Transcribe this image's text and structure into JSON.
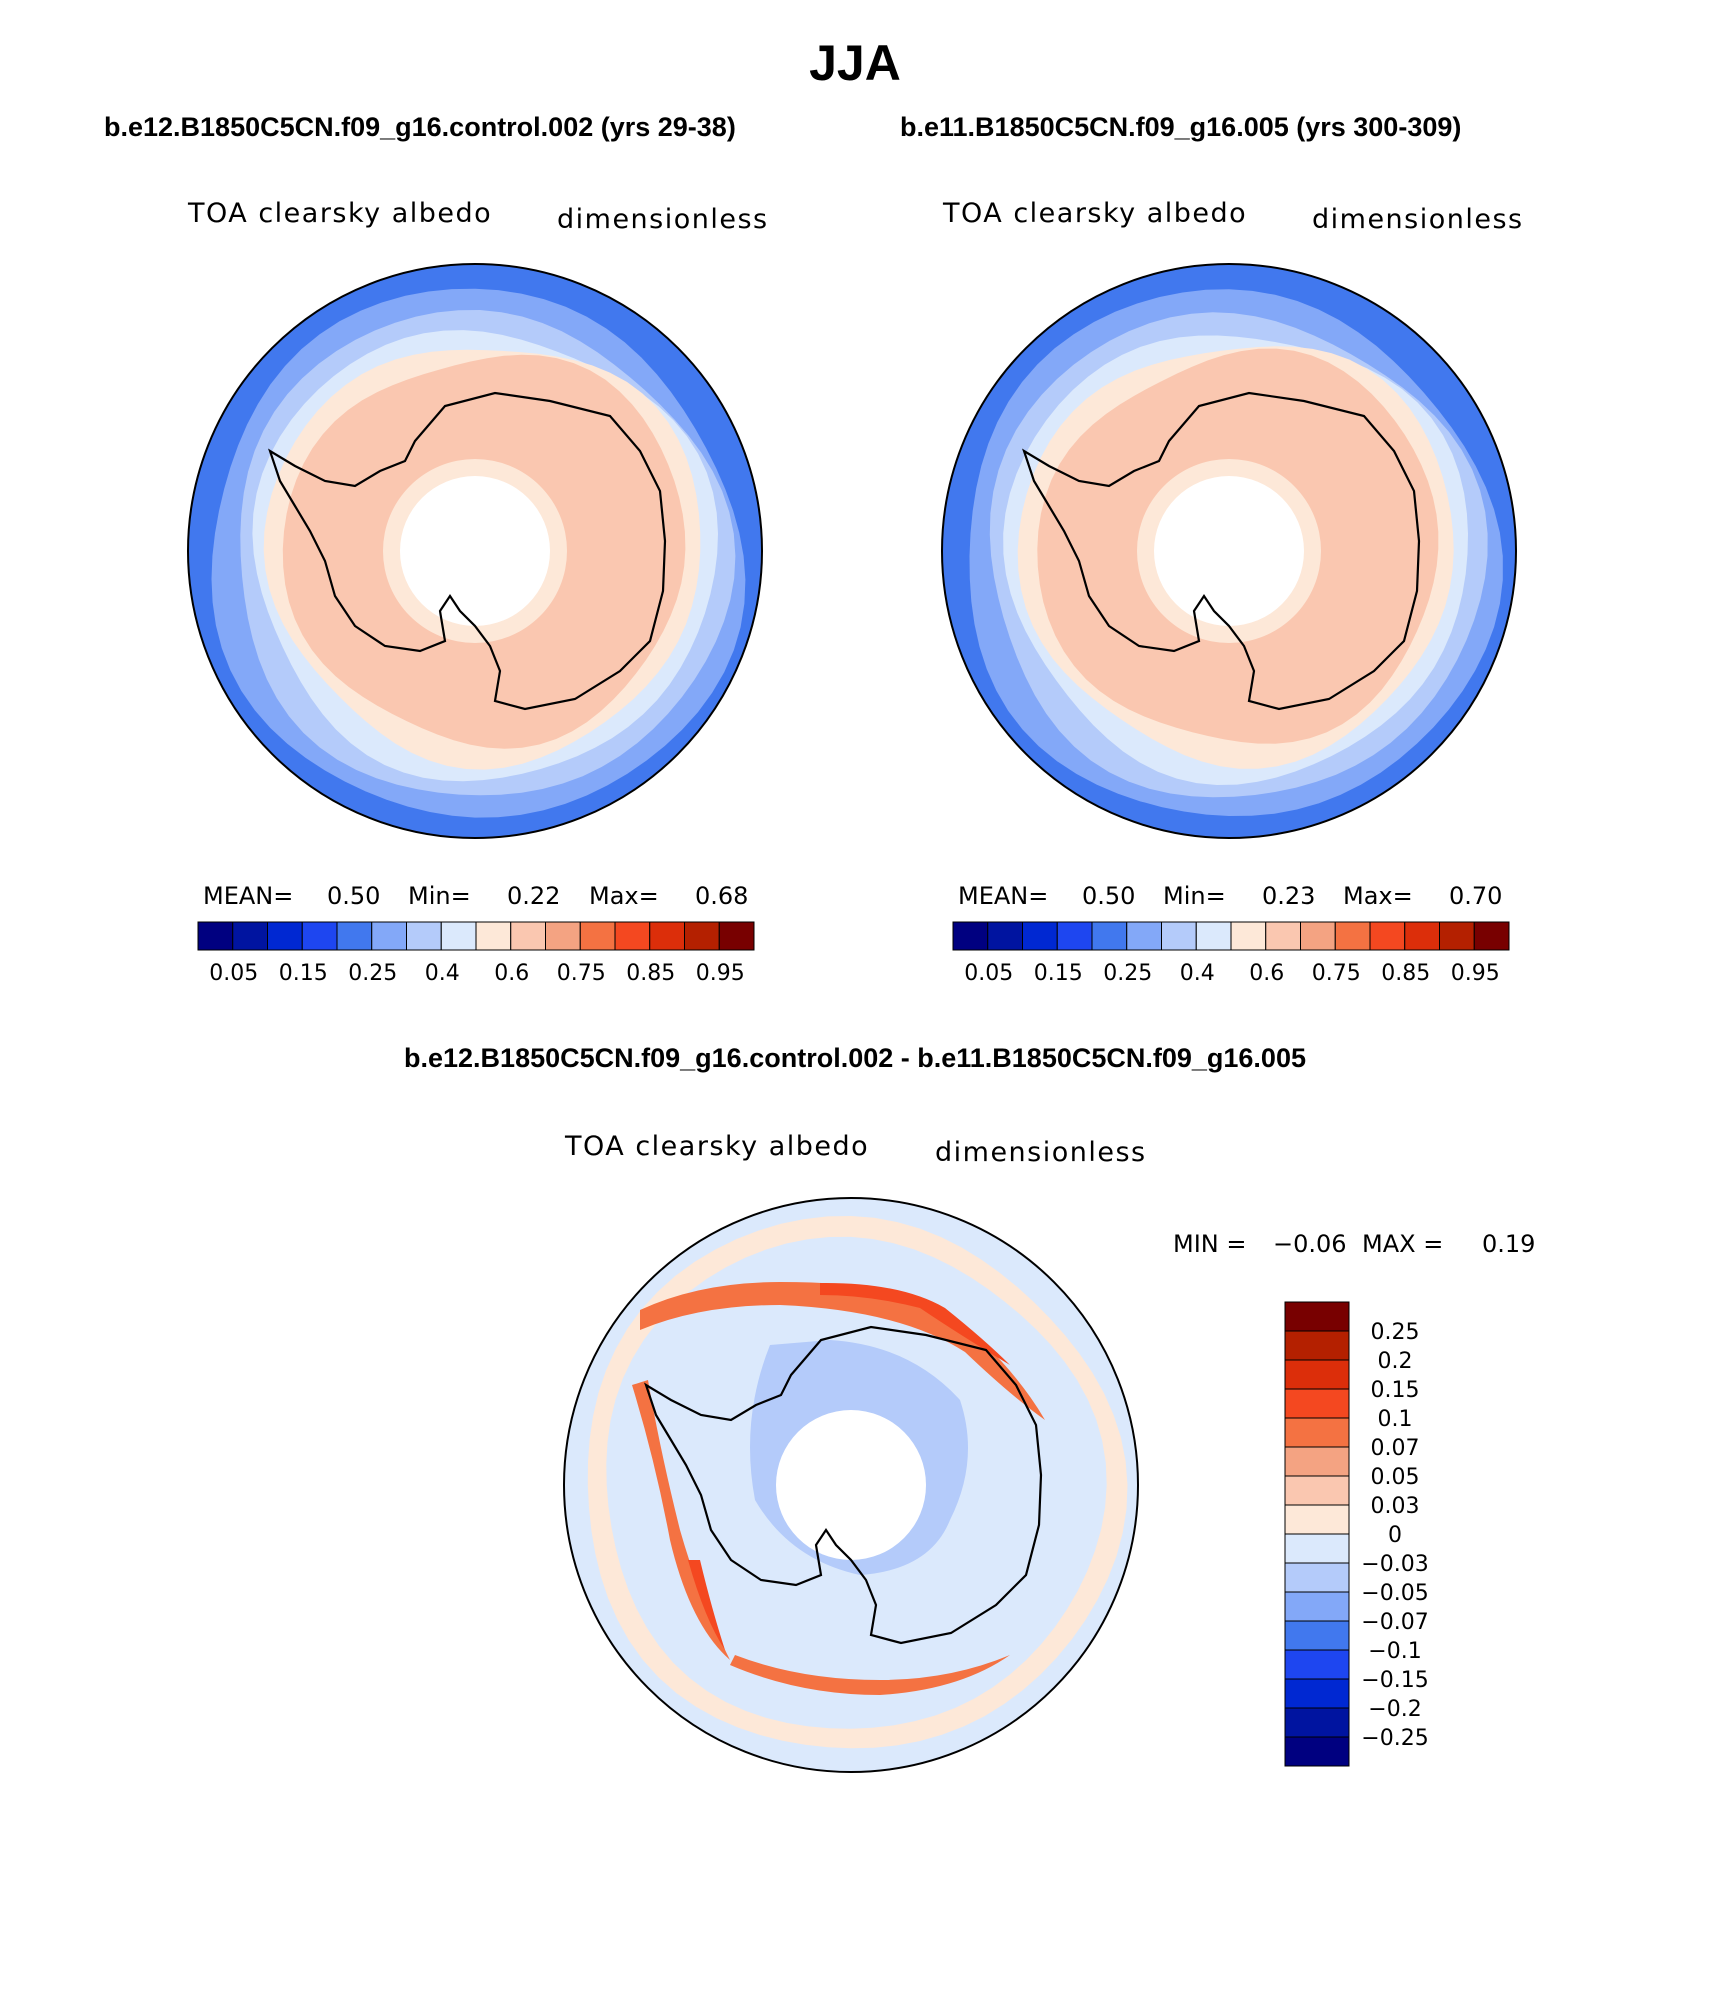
{
  "title": "JJA",
  "colors": {
    "abs_scale": [
      "#000080",
      "#0014a0",
      "#0028d2",
      "#1e46f0",
      "#4178ee",
      "#83a8f8",
      "#b4cbfa",
      "#dbe9fc",
      "#fde8d8",
      "#fac7b0",
      "#f4a382",
      "#f47242",
      "#f44820",
      "#dc2e0a",
      "#b42000",
      "#780000"
    ],
    "diff_scale": [
      "#000080",
      "#0014a0",
      "#0028d2",
      "#1e46f0",
      "#4178ee",
      "#83a8f8",
      "#b4cbfa",
      "#dbe9fc",
      "#fde8d8",
      "#fac7b0",
      "#f4a382",
      "#f47242",
      "#f44820",
      "#dc2e0a",
      "#b42000",
      "#780000"
    ],
    "contour_land": "#f9c4ac",
    "coast": "#000000"
  },
  "chart_data": [
    {
      "type": "heatmap",
      "panel": "left",
      "case_title": "b.e12.B1850C5CN.f09_g16.control.002 (yrs 29-38)",
      "variable": "TOA clearsky albedo",
      "units": "dimensionless",
      "projection": "polar stereographic (south)",
      "stats": {
        "mean_label": "MEAN=",
        "mean": "0.50",
        "min_label": "Min=",
        "min": "0.22",
        "max_label": "Max=",
        "max": "0.68"
      },
      "levels": [
        0.05,
        0.1,
        0.15,
        0.2,
        0.25,
        0.3,
        0.4,
        0.5,
        0.6,
        0.7,
        0.75,
        0.8,
        0.85,
        0.9,
        0.95
      ],
      "colorbar_tick_labels": [
        "0.05",
        "0.15",
        "0.25",
        "0.4",
        "0.6",
        "0.75",
        "0.85",
        "0.95"
      ]
    },
    {
      "type": "heatmap",
      "panel": "right",
      "case_title": "b.e11.B1850C5CN.f09_g16.005 (yrs 300-309)",
      "variable": "TOA clearsky albedo",
      "units": "dimensionless",
      "projection": "polar stereographic (south)",
      "stats": {
        "mean_label": "MEAN=",
        "mean": "0.50",
        "min_label": "Min=",
        "min": "0.23",
        "max_label": "Max=",
        "max": "0.70"
      },
      "levels": [
        0.05,
        0.1,
        0.15,
        0.2,
        0.25,
        0.3,
        0.4,
        0.5,
        0.6,
        0.7,
        0.75,
        0.8,
        0.85,
        0.9,
        0.95
      ],
      "colorbar_tick_labels": [
        "0.05",
        "0.15",
        "0.25",
        "0.4",
        "0.6",
        "0.75",
        "0.85",
        "0.95"
      ]
    },
    {
      "type": "heatmap",
      "panel": "difference",
      "case_title": "b.e12.B1850C5CN.f09_g16.control.002 - b.e11.B1850C5CN.f09_g16.005",
      "variable": "TOA clearsky albedo",
      "units": "dimensionless",
      "projection": "polar stereographic (south)",
      "stats": {
        "min_label": "MIN =",
        "min": "−0.06",
        "max_label": "MAX =",
        "max": "0.19"
      },
      "levels": [
        -0.25,
        -0.2,
        -0.15,
        -0.1,
        -0.07,
        -0.05,
        -0.03,
        0,
        0.03,
        0.05,
        0.07,
        0.1,
        0.15,
        0.2,
        0.25
      ],
      "colorbar_tick_labels": [
        "0.25",
        "0.2",
        "0.15",
        "0.1",
        "0.07",
        "0.05",
        "0.03",
        "0",
        "−0.03",
        "−0.05",
        "−0.07",
        "−0.1",
        "−0.15",
        "−0.2",
        "−0.25"
      ]
    }
  ]
}
